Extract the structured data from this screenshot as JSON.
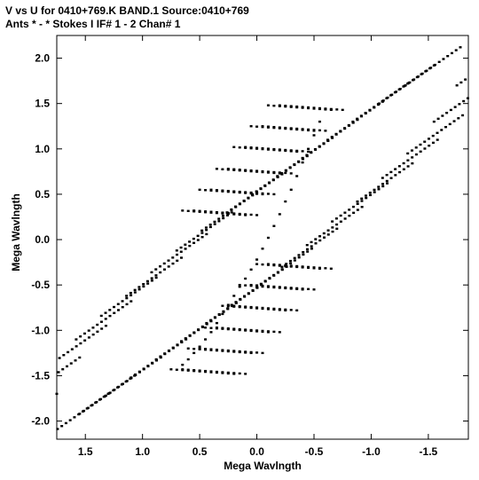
{
  "chart_data": {
    "type": "scatter",
    "title_line1": "V vs U for 0410+769.K BAND.1   Source:0410+769",
    "title_line2": "Ants * - *     Stokes I  IF# 1 - 2  Chan# 1",
    "xlabel": "Mega Wavlngth",
    "ylabel": "Mega Wavlngth",
    "xlim": [
      1.75,
      -1.85
    ],
    "ylim": [
      -2.2,
      2.25
    ],
    "x_reversed": true,
    "grid": false,
    "x_ticks": [
      1.5,
      1.0,
      0.5,
      0.0,
      -0.5,
      -1.0,
      -1.5
    ],
    "x_tick_labels": [
      "1.5",
      "1.0",
      "0.5",
      "0.0",
      "-0.5",
      "-1.0",
      "-1.5"
    ],
    "y_ticks": [
      2.0,
      1.5,
      1.0,
      0.5,
      0.0,
      -0.5,
      -1.0,
      -1.5,
      -2.0
    ],
    "y_tick_labels": [
      "2.0",
      "1.5",
      "1.0",
      "0.5",
      "0.0",
      "-0.5",
      "-1.0",
      "-1.5",
      "-2.0"
    ],
    "marker_color": "#000000",
    "track_sets": [
      {
        "name": "",
        "start_u": [
          -1.78,
          -1.55,
          -1.32,
          -1.1,
          -0.88,
          -0.66,
          -0.44,
          -0.22,
          0.0,
          0.22,
          0.44,
          0.66,
          0.88,
          1.1,
          1.32,
          1.55,
          1.75
        ],
        "start_v": [
          2.12,
          1.92,
          1.72,
          1.52,
          1.32,
          1.12,
          0.92,
          0.72,
          0.52,
          0.3,
          0.06,
          -0.2,
          -0.42,
          -0.68,
          -0.95,
          -1.3,
          -1.7
        ],
        "du": 0.48,
        "dv": -0.42,
        "points_per_track": 14
      },
      {
        "name": "",
        "start_u": [
          -0.1,
          0.05,
          0.2,
          0.35,
          0.5,
          0.65
        ],
        "start_v": [
          1.48,
          1.25,
          1.02,
          0.78,
          0.55,
          0.32
        ],
        "du": -0.55,
        "dv": -0.05,
        "points_per_track": 12
      },
      {
        "name": "",
        "start_u": [
          -0.55,
          -0.4,
          -0.25,
          -0.1,
          0.05,
          0.2
        ],
        "start_v": [
          -0.32,
          -0.55,
          -0.78,
          -1.02,
          -1.25,
          -1.48
        ],
        "du": 0.55,
        "dv": 0.05,
        "points_per_track": 12
      }
    ],
    "center_arc": {
      "name": "",
      "u": [
        -0.55,
        -0.5,
        -0.45,
        -0.4,
        -0.35,
        -0.3,
        -0.25,
        -0.2,
        -0.15,
        -0.1,
        -0.05,
        0.0,
        0.05,
        0.1,
        0.15,
        0.2,
        0.25,
        0.3,
        0.35,
        0.4,
        0.45,
        0.5,
        0.55,
        0.6,
        0.65
      ],
      "v": [
        1.3,
        1.15,
        1.0,
        0.85,
        0.7,
        0.55,
        0.42,
        0.28,
        0.15,
        0.02,
        -0.1,
        -0.22,
        -0.33,
        -0.43,
        -0.52,
        -0.62,
        -0.72,
        -0.82,
        -0.92,
        -1.02,
        -1.1,
        -1.18,
        -1.25,
        -1.32,
        -1.38
      ]
    }
  }
}
